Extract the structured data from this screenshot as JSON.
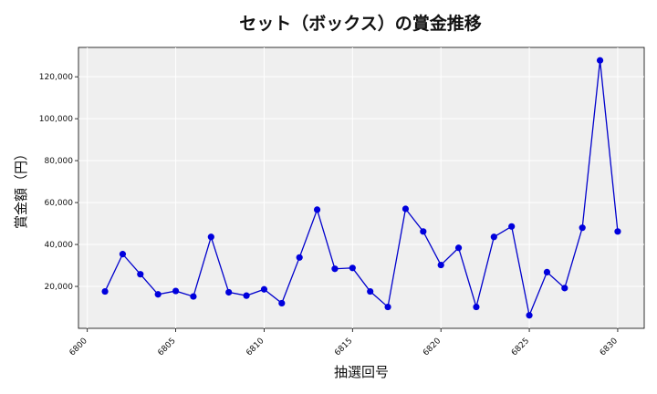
{
  "chart_data": {
    "type": "line",
    "title": "セット（ボックス）の賞金推移",
    "xlabel": "抽選回号",
    "ylabel": "賞金額（円）",
    "xlim": [
      6799.5,
      6831.5
    ],
    "ylim": [
      0,
      134000
    ],
    "xticks": [
      6800,
      6805,
      6810,
      6815,
      6820,
      6825,
      6830
    ],
    "yticks": [
      20000,
      40000,
      60000,
      80000,
      100000,
      120000
    ],
    "ytick_labels": [
      "20,000",
      "40,000",
      "60,000",
      "80,000",
      "100,000",
      "120,000"
    ],
    "grid": true,
    "line_color": "#0000cc",
    "marker_color": "#0000dd",
    "plot_background": "#efefef",
    "series": [
      {
        "x": [
          6801,
          6802,
          6803,
          6804,
          6805,
          6806,
          6807,
          6808,
          6809,
          6810,
          6811,
          6812,
          6813,
          6814,
          6815,
          6816,
          6817,
          6818,
          6819,
          6820,
          6821,
          6822,
          6823,
          6824,
          6825,
          6826,
          6827,
          6828,
          6829,
          6830
        ],
        "values": [
          17600,
          35400,
          25800,
          16200,
          17800,
          15200,
          43600,
          17200,
          15600,
          18600,
          12000,
          33800,
          56600,
          28400,
          28800,
          17600,
          10200,
          57000,
          46200,
          30200,
          38400,
          10200,
          43600,
          48600,
          6200,
          26800,
          19200,
          48000,
          127800,
          46200
        ]
      }
    ]
  }
}
